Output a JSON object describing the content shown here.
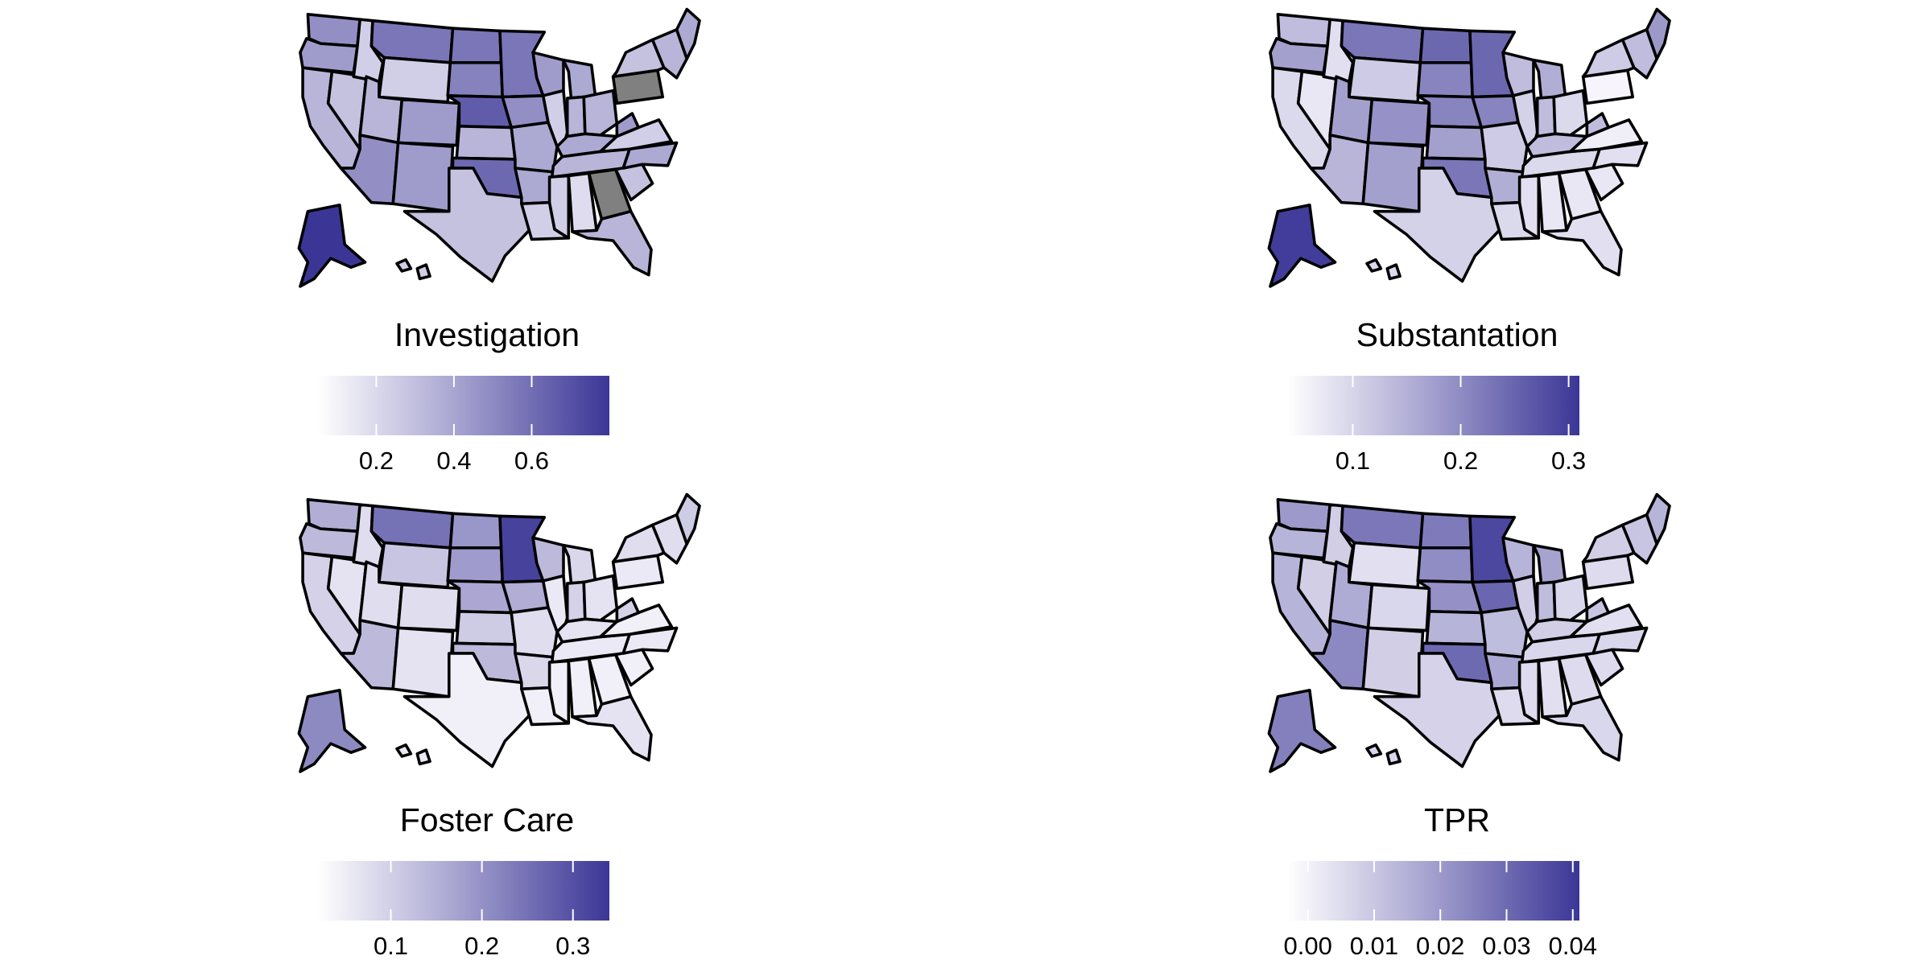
{
  "palette": {
    "low": "#f7f5fb",
    "high": "#3b3696",
    "missing": "#808080",
    "outline": "#000000"
  },
  "panels": [
    {
      "title": "Investigation",
      "legend": {
        "min": 0.05,
        "max": 0.8,
        "ticks": [
          0.2,
          0.4,
          0.6
        ],
        "labels": [
          "0.2",
          "0.4",
          "0.6"
        ]
      },
      "states": {
        "WA": 0.45,
        "OR": 0.4,
        "CA": 0.3,
        "NV": 0.25,
        "ID": 0.2,
        "MT": 0.55,
        "WY": 0.2,
        "UT": 0.3,
        "AZ": 0.45,
        "CO": 0.4,
        "NM": 0.4,
        "ND": 0.55,
        "SD": 0.5,
        "NE": 0.65,
        "KS": 0.3,
        "OK": 0.6,
        "TX": 0.25,
        "MN": 0.55,
        "IA": 0.45,
        "MO": 0.35,
        "AR": 0.35,
        "LA": 0.2,
        "WI": 0.4,
        "IL": 0.2,
        "MI": 0.35,
        "IN": 0.3,
        "OH": 0.3,
        "KY": 0.35,
        "TN": 0.3,
        "MS": 0.2,
        "AL": 0.15,
        "GA": null,
        "FL": 0.3,
        "SC": 0.25,
        "NC": 0.35,
        "VA": 0.2,
        "WV": 0.4,
        "PA": null,
        "NY": 0.25,
        "NE_REGION": 0.3,
        "ME": 0.35,
        "AK": 0.8,
        "HI": 0.2
      }
    },
    {
      "title": "Substantation",
      "legend": {
        "min": 0.04,
        "max": 0.31,
        "ticks": [
          0.1,
          0.2,
          0.3
        ],
        "labels": [
          "0.1",
          "0.2",
          "0.3"
        ]
      },
      "states": {
        "WA": 0.12,
        "OR": 0.16,
        "CA": 0.08,
        "NV": 0.06,
        "ID": 0.07,
        "MT": 0.22,
        "WY": 0.1,
        "UT": 0.16,
        "AZ": 0.13,
        "CO": 0.18,
        "NM": 0.16,
        "ND": 0.24,
        "SD": 0.2,
        "NE": 0.2,
        "KS": 0.16,
        "OK": 0.22,
        "TX": 0.09,
        "MN": 0.24,
        "IA": 0.2,
        "MO": 0.1,
        "AR": 0.14,
        "LA": 0.08,
        "WI": 0.12,
        "IL": 0.09,
        "MI": 0.14,
        "IN": 0.12,
        "OH": 0.08,
        "KY": 0.12,
        "TN": 0.08,
        "MS": 0.07,
        "AL": 0.06,
        "GA": 0.06,
        "FL": 0.07,
        "SC": 0.06,
        "NC": 0.07,
        "VA": 0.05,
        "WV": 0.12,
        "PA": 0.04,
        "NY": 0.1,
        "NE_REGION": 0.12,
        "ME": 0.17,
        "AK": 0.3,
        "HI": 0.08
      }
    },
    {
      "title": "Foster Care",
      "legend": {
        "min": 0.02,
        "max": 0.34,
        "ticks": [
          0.1,
          0.2,
          0.3
        ],
        "labels": [
          "0.1",
          "0.2",
          "0.3"
        ]
      },
      "states": {
        "WA": 0.14,
        "OR": 0.12,
        "CA": 0.08,
        "NV": 0.05,
        "ID": 0.06,
        "MT": 0.24,
        "WY": 0.1,
        "UT": 0.06,
        "AZ": 0.12,
        "CO": 0.06,
        "NM": 0.05,
        "ND": 0.18,
        "SD": 0.17,
        "NE": 0.15,
        "KS": 0.09,
        "OK": 0.12,
        "TX": 0.03,
        "MN": 0.32,
        "IA": 0.14,
        "MO": 0.06,
        "AR": 0.07,
        "LA": 0.03,
        "WI": 0.12,
        "IL": 0.04,
        "MI": 0.07,
        "IN": 0.08,
        "OH": 0.05,
        "KY": 0.05,
        "TN": 0.04,
        "MS": 0.03,
        "AL": 0.03,
        "GA": 0.03,
        "FL": 0.05,
        "SC": 0.03,
        "NC": 0.04,
        "VA": 0.03,
        "WV": 0.08,
        "PA": 0.04,
        "NY": 0.06,
        "NE_REGION": 0.06,
        "ME": 0.09,
        "AK": 0.2,
        "HI": 0.04
      }
    },
    {
      "title": "TPR",
      "legend": {
        "min": -0.003,
        "max": 0.041,
        "ticks": [
          0.0,
          0.01,
          0.02,
          0.03,
          0.04
        ],
        "labels": [
          "0.00",
          "0.01",
          "0.02",
          "0.03",
          "0.04"
        ]
      },
      "states": {
        "WA": 0.018,
        "OR": 0.012,
        "CA": 0.012,
        "NV": 0.006,
        "ID": 0.006,
        "MT": 0.026,
        "WY": 0.002,
        "UT": 0.014,
        "AZ": 0.022,
        "CO": 0.004,
        "NM": 0.006,
        "ND": 0.025,
        "SD": 0.021,
        "NE": 0.02,
        "KS": 0.012,
        "OK": 0.029,
        "TX": 0.005,
        "MN": 0.037,
        "IA": 0.03,
        "MO": 0.01,
        "AR": 0.015,
        "LA": 0.003,
        "WI": 0.012,
        "IL": 0.006,
        "MI": 0.016,
        "IN": 0.01,
        "OH": 0.004,
        "KY": 0.006,
        "TN": 0.004,
        "MS": 0.003,
        "AL": 0.002,
        "GA": 0.003,
        "FL": 0.004,
        "SC": 0.003,
        "NC": 0.004,
        "VA": 0.002,
        "WV": 0.008,
        "PA": 0.003,
        "NY": 0.006,
        "NE_REGION": 0.008,
        "ME": 0.012,
        "AK": 0.024,
        "HI": 0.004
      }
    }
  ]
}
